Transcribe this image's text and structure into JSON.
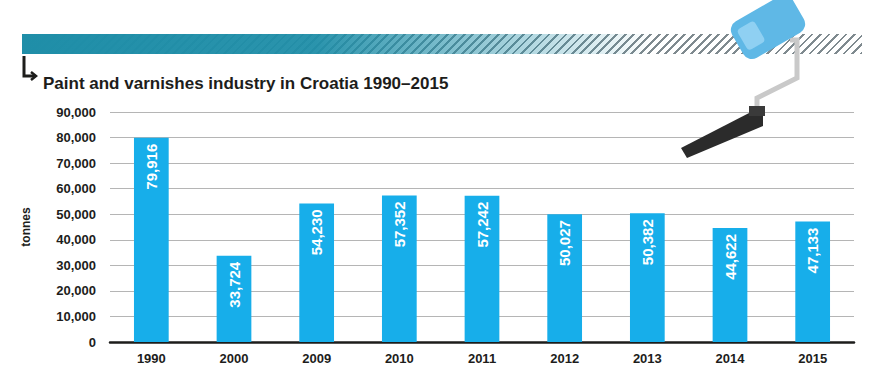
{
  "chart_data": {
    "type": "bar",
    "title": "Paint and varnishes industry in Croatia 1990–2015",
    "y_label": "tonnes",
    "categories": [
      "1990",
      "2000",
      "2009",
      "2010",
      "2011",
      "2012",
      "2013",
      "2014",
      "2015"
    ],
    "values": [
      79916,
      33724,
      54230,
      57352,
      57242,
      50027,
      50382,
      44622,
      47133
    ],
    "value_labels": [
      "79,916",
      "33,724",
      "54,230",
      "57,352",
      "57,242",
      "50,027",
      "50,382",
      "44,622",
      "47,133"
    ],
    "color": "#17aeea",
    "ylim": [
      0,
      90000
    ],
    "yticks": [
      0,
      {
        "value": 10000,
        "label": "10,000"
      },
      {
        "value": 20000,
        "label": "20,000"
      },
      {
        "value": 30000,
        "label": "30,000"
      },
      {
        "value": 40000,
        "label": "40,000"
      },
      {
        "value": 50000,
        "label": "50,000"
      },
      {
        "value": 60000,
        "label": "60,000"
      },
      {
        "value": 70000,
        "label": "70,000"
      },
      {
        "value": 80000,
        "label": "80,000"
      },
      {
        "value": 90000,
        "label": "90,000"
      }
    ],
    "grid": true,
    "data_labels": true
  }
}
